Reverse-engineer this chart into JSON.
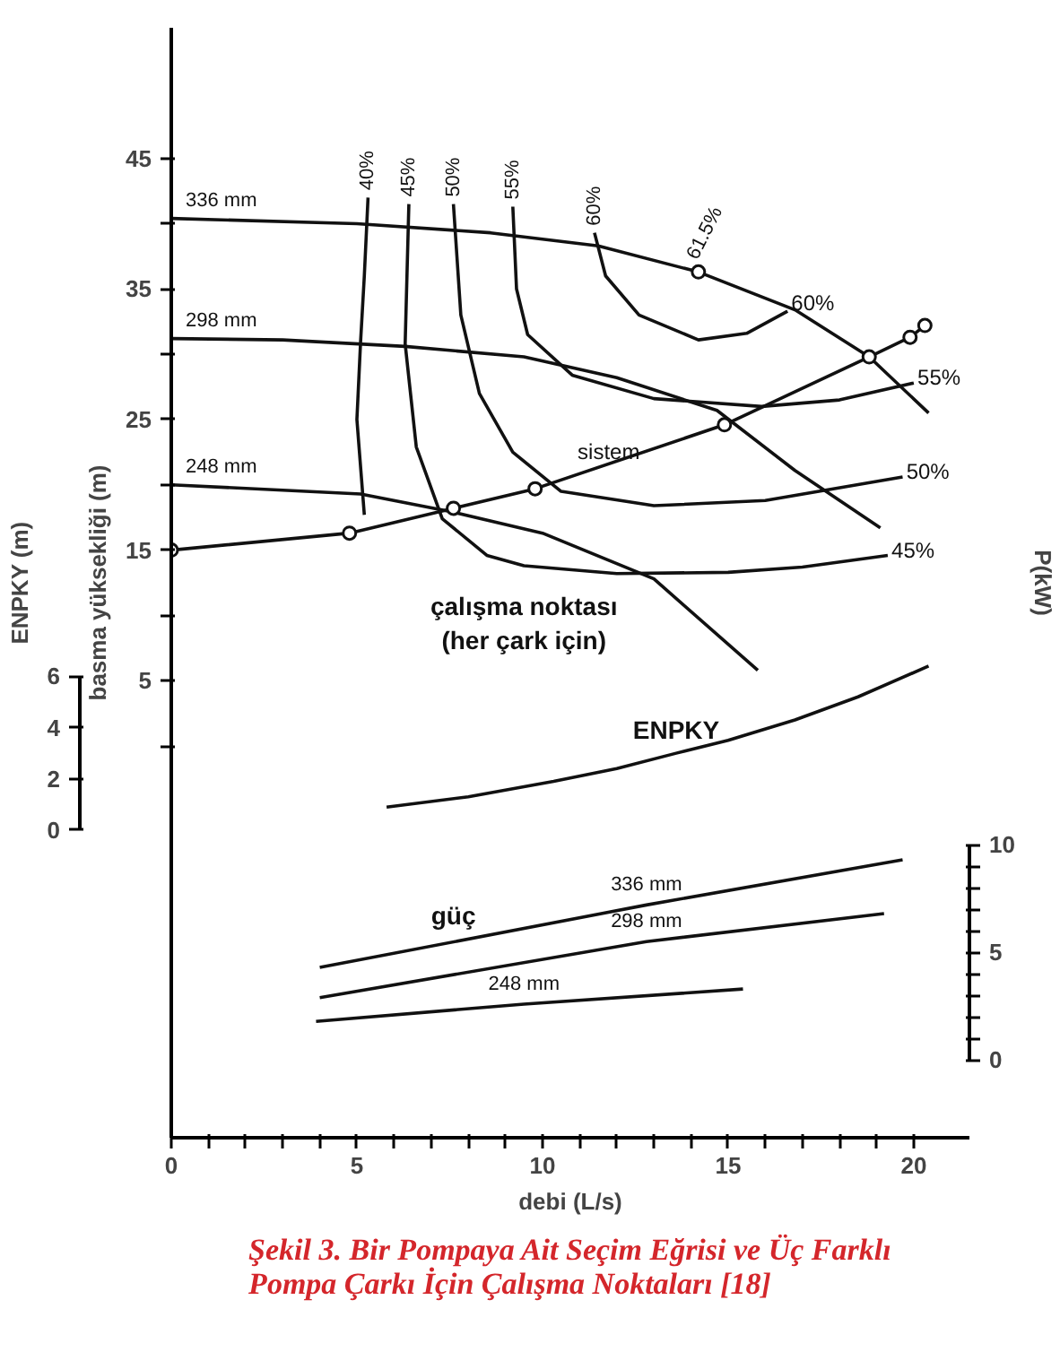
{
  "chart_data": {
    "type": "line",
    "title": "Şekil 3. Bir Pompaya Ait Seçim Eğrisi ve Üç Farklı Pompa Çarkı İçin Çalışma Noktaları [18]",
    "xlabel": "debi (L/s)",
    "ylabel": "basma yüksekliği (m)",
    "y2label": "ENPKY (m)",
    "y3label": "P(kW)",
    "xlim": [
      0,
      21.5
    ],
    "ylim": [
      -30,
      55
    ],
    "y2lim": [
      -12,
      31.3
    ],
    "y3lim": [
      -3.6,
      47.9
    ],
    "xticks": [
      0,
      {
        "value": 1,
        "label": null
      },
      {
        "value": 2,
        "label": null
      },
      {
        "value": 3,
        "label": null
      },
      {
        "value": 4,
        "label": null
      },
      5,
      {
        "value": 6,
        "label": null
      },
      {
        "value": 7,
        "label": null
      },
      {
        "value": 8,
        "label": null
      },
      {
        "value": 9,
        "label": null
      },
      10,
      {
        "value": 11,
        "label": null
      },
      {
        "value": 12,
        "label": null
      },
      {
        "value": 13,
        "label": null
      },
      {
        "value": 14,
        "label": null
      },
      15,
      {
        "value": 16,
        "label": null
      },
      {
        "value": 17,
        "label": null
      },
      {
        "value": 18,
        "label": null
      },
      {
        "value": 19,
        "label": null
      },
      20
    ],
    "yticks": [
      {
        "value": 0,
        "label": null
      },
      5,
      {
        "value": 10,
        "label": null
      },
      15,
      {
        "value": 20,
        "label": null
      },
      25,
      {
        "value": 30,
        "label": null
      },
      35,
      {
        "value": 40,
        "label": null
      },
      45
    ],
    "y2ticks": [
      0,
      2,
      4,
      6
    ],
    "y3ticks": [
      0,
      {
        "value": 1,
        "label": null
      },
      {
        "value": 2,
        "label": null
      },
      {
        "value": 3,
        "label": null
      },
      {
        "value": 4,
        "label": null
      },
      5,
      {
        "value": 6,
        "label": null
      },
      {
        "value": 7,
        "label": null
      },
      {
        "value": 8,
        "label": null
      },
      {
        "value": 9,
        "label": null
      },
      10
    ],
    "series": [
      {
        "name": "336 mm",
        "color": "#111111",
        "x": [
          0,
          5,
          8.6,
          11.5,
          14.2,
          16.8,
          18.8,
          20.4
        ],
        "values": [
          40.4,
          40.0,
          39.3,
          38.3,
          36.3,
          33.4,
          29.8,
          25.5
        ]
      },
      {
        "name": "298 mm",
        "color": "#111111",
        "x": [
          0,
          3,
          6.3,
          9.5,
          12,
          14.7,
          16.8,
          19.1
        ],
        "values": [
          31.2,
          31.1,
          30.6,
          29.8,
          28.2,
          25.7,
          21.1,
          16.7
        ]
      },
      {
        "name": "248 mm",
        "color": "#111111",
        "x": [
          0,
          5.1,
          7.6,
          10,
          13,
          15.8
        ],
        "values": [
          20.0,
          19.3,
          17.9,
          16.3,
          12.8,
          5.8
        ]
      },
      {
        "name": "40%",
        "color": "#111111",
        "x": [
          5.3,
          5.2,
          5.1,
          5.0,
          5.2
        ],
        "values": [
          42,
          36,
          31,
          25,
          17.7
        ]
      },
      {
        "name": "45%",
        "color": "#111111",
        "x": [
          6.4,
          6.3,
          6.6,
          7.3,
          8.5,
          9.5,
          12,
          15,
          17,
          19.3
        ],
        "values": [
          41.5,
          30.8,
          22.9,
          17.4,
          14.6,
          13.8,
          13.2,
          13.3,
          13.7,
          14.6
        ]
      },
      {
        "name": "50%",
        "color": "#111111",
        "x": [
          7.6,
          7.8,
          8.3,
          9.2,
          10.5,
          13,
          16,
          19.7
        ],
        "values": [
          41.5,
          33,
          27,
          22.5,
          19.5,
          18.4,
          18.8,
          20.6
        ]
      },
      {
        "name": "55%",
        "color": "#111111",
        "x": [
          9.2,
          9.3,
          9.6,
          10.8,
          13,
          15.9,
          18,
          20
        ],
        "values": [
          41.3,
          35,
          31.5,
          28.4,
          26.6,
          26,
          26.5,
          27.8
        ]
      },
      {
        "name": "60%",
        "color": "#111111",
        "x": [
          11.4,
          11.7,
          12.6,
          14.2,
          15.5,
          16.6
        ],
        "values": [
          39.3,
          36,
          33,
          31.1,
          31.6,
          33.3
        ]
      },
      {
        "color": "#111111",
        "marker": "circle",
        "x": [
          0,
          4.8,
          7.6,
          9.8,
          14.9,
          18.8,
          19.9,
          20.3
        ],
        "values": [
          15,
          16.3,
          18.2,
          19.7,
          24.6,
          29.8,
          31.3,
          32.2
        ]
      },
      {
        "name": "61.5%",
        "type": "scatter",
        "marker": "circle",
        "color": "#111111",
        "x": [
          14.2
        ],
        "values": [
          36.3
        ]
      },
      {
        "name": "ENPKY",
        "axis": "y2",
        "color": "#111111",
        "x": [
          5.8,
          8,
          10.3,
          12,
          13.6,
          15,
          16.8,
          18.5,
          20.4
        ],
        "values": [
          0.9,
          1.3,
          1.9,
          2.4,
          3.0,
          3.5,
          4.3,
          5.2,
          6.4
        ]
      },
      {
        "name": "336 mm",
        "axis": "y3",
        "color": "#111111",
        "x": [
          4,
          12.8,
          19.7
        ],
        "values": [
          4.3,
          7.2,
          9.3
        ]
      },
      {
        "name": "298 mm",
        "axis": "y3",
        "color": "#111111",
        "x": [
          4,
          12.8,
          19.2
        ],
        "values": [
          2.9,
          5.5,
          6.8
        ]
      },
      {
        "name": "248 mm",
        "axis": "y3",
        "color": "#111111",
        "x": [
          3.9,
          9.5,
          15.4
        ],
        "values": [
          1.8,
          2.6,
          3.3
        ]
      }
    ],
    "annotations": [
      "60%",
      "55%",
      "50%",
      "45%",
      {
        "text": "sistem",
        "x": 10.8,
        "y": 21.3
      },
      "çalışma noktası (her çark için)",
      "güç"
    ],
    "grid": false,
    "marker": "none",
    "line_style": "solid"
  }
}
